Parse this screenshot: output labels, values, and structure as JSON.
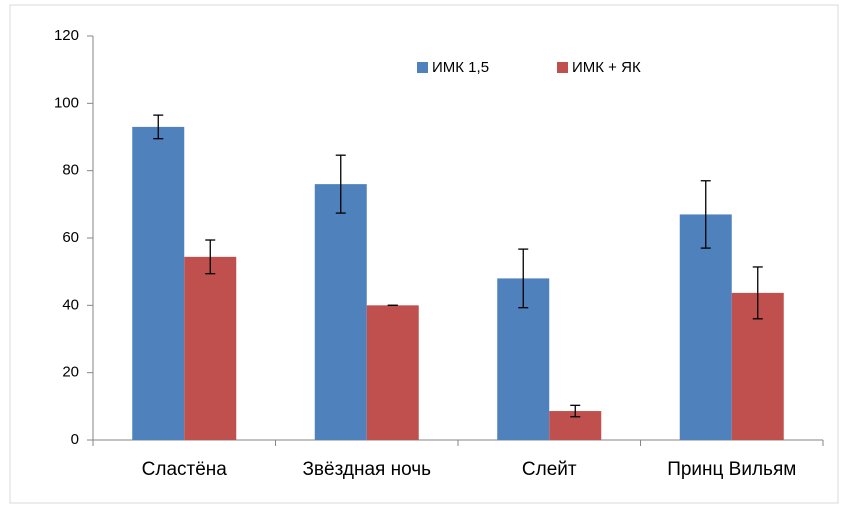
{
  "chart_data": {
    "type": "bar",
    "categories": [
      "Сластёна",
      "Звёздная ночь",
      "Слейт",
      "Принц Вильям"
    ],
    "series": [
      {
        "name": "ИМК 1,5",
        "color": "#4f81bd",
        "values": [
          93,
          76,
          48,
          67
        ],
        "errors": [
          3.5,
          8.6,
          8.7,
          10
        ]
      },
      {
        "name": "ИМК + ЯК",
        "color": "#c0504d",
        "values": [
          54.4,
          40,
          8.6,
          43.7
        ],
        "errors": [
          5,
          0,
          1.7,
          7.7
        ]
      }
    ],
    "ylim": [
      0,
      120
    ],
    "yticks": [
      0,
      20,
      40,
      60,
      80,
      100,
      120
    ],
    "grid": false,
    "legend": "top"
  }
}
